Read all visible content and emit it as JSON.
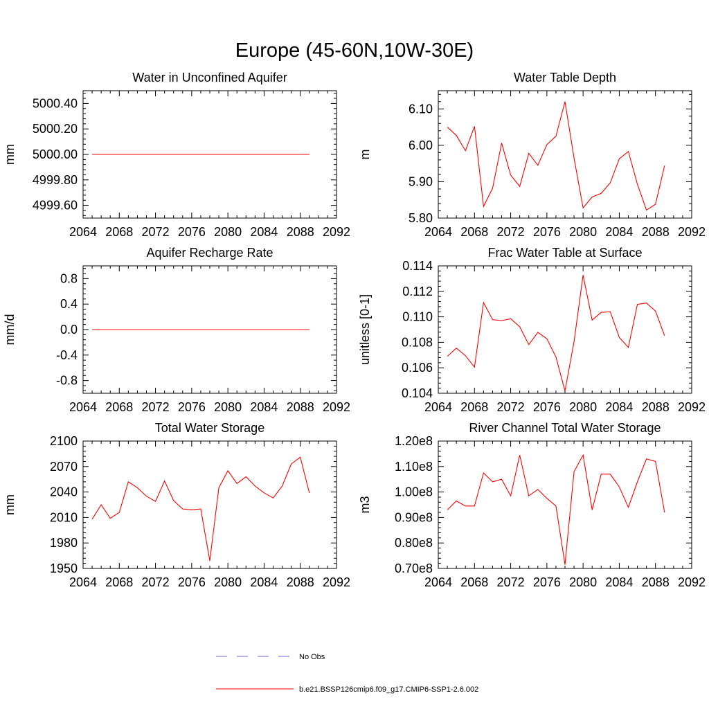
{
  "figure": {
    "title": "Europe (45-60N,10W-30E)",
    "legend": {
      "placement": "bottom-center",
      "entries": [
        {
          "label": "No Obs",
          "color": "#6b6bd6",
          "style": "dashed"
        },
        {
          "label": "b.e21.BSSP126cmip6.f09_g17.CMIP6-SSP1-2.6.002",
          "color": "#ff0000",
          "style": "solid"
        }
      ]
    }
  },
  "chart_data": [
    {
      "type": "line",
      "title": "Water in Unconfined Aquifer",
      "ylabel": "mm",
      "xlim": [
        2064,
        2092
      ],
      "ylim": [
        4999.5,
        5000.5
      ],
      "xticks": [
        2064,
        2068,
        2072,
        2076,
        2080,
        2084,
        2088,
        2092
      ],
      "yticks": [
        4999.6,
        4999.8,
        5000.0,
        5000.2,
        5000.4
      ],
      "ytick_labels": [
        "4999.60",
        "4999.80",
        "5000.00",
        "5000.20",
        "5000.40"
      ],
      "grid": false,
      "x": [
        2065,
        2066,
        2067,
        2068,
        2069,
        2070,
        2071,
        2072,
        2073,
        2074,
        2075,
        2076,
        2077,
        2078,
        2079,
        2080,
        2081,
        2082,
        2083,
        2084,
        2085,
        2086,
        2087,
        2088,
        2089
      ],
      "series": [
        {
          "color": "#ff0000",
          "values": [
            5000,
            5000,
            5000,
            5000,
            5000,
            5000,
            5000,
            5000,
            5000,
            5000,
            5000,
            5000,
            5000,
            5000,
            5000,
            5000,
            5000,
            5000,
            5000,
            5000,
            5000,
            5000,
            5000,
            5000,
            5000
          ]
        }
      ]
    },
    {
      "type": "line",
      "title": "Water Table Depth",
      "ylabel": "m",
      "xlim": [
        2064,
        2092
      ],
      "ylim": [
        5.8,
        6.15
      ],
      "xticks": [
        2064,
        2068,
        2072,
        2076,
        2080,
        2084,
        2088,
        2092
      ],
      "yticks": [
        5.8,
        5.9,
        6.0,
        6.1
      ],
      "ytick_labels": [
        "5.80",
        "5.90",
        "6.00",
        "6.10"
      ],
      "grid": false,
      "x": [
        2065,
        2066,
        2067,
        2068,
        2069,
        2070,
        2071,
        2072,
        2073,
        2074,
        2075,
        2076,
        2077,
        2078,
        2079,
        2080,
        2081,
        2082,
        2083,
        2084,
        2085,
        2086,
        2087,
        2088,
        2089
      ],
      "series": [
        {
          "color": "#ff0000",
          "values": [
            6.05,
            6.027,
            5.985,
            6.052,
            5.832,
            5.882,
            6.006,
            5.918,
            5.887,
            5.978,
            5.945,
            6.002,
            6.025,
            6.12,
            5.965,
            5.828,
            5.858,
            5.868,
            5.897,
            5.963,
            5.983,
            5.893,
            5.822,
            5.838,
            5.944
          ]
        }
      ]
    },
    {
      "type": "line",
      "title": "Aquifer Recharge Rate",
      "ylabel": "mm/d",
      "xlim": [
        2064,
        2092
      ],
      "ylim": [
        -1.0,
        1.0
      ],
      "xticks": [
        2064,
        2068,
        2072,
        2076,
        2080,
        2084,
        2088,
        2092
      ],
      "yticks": [
        -0.8,
        -0.4,
        0.0,
        0.4,
        0.8
      ],
      "ytick_labels": [
        "-0.8",
        "-0.4",
        "0.0",
        "0.4",
        "0.8"
      ],
      "grid": false,
      "x": [
        2065,
        2066,
        2067,
        2068,
        2069,
        2070,
        2071,
        2072,
        2073,
        2074,
        2075,
        2076,
        2077,
        2078,
        2079,
        2080,
        2081,
        2082,
        2083,
        2084,
        2085,
        2086,
        2087,
        2088,
        2089
      ],
      "series": [
        {
          "color": "#ff0000",
          "values": [
            0,
            0,
            0,
            0,
            0,
            0,
            0,
            0,
            0,
            0,
            0,
            0,
            0,
            0,
            0,
            0,
            0,
            0,
            0,
            0,
            0,
            0,
            0,
            0,
            0
          ]
        }
      ]
    },
    {
      "type": "line",
      "title": "Frac Water Table at Surface",
      "ylabel": "unitless [0-1]",
      "xlim": [
        2064,
        2092
      ],
      "ylim": [
        0.104,
        0.114
      ],
      "xticks": [
        2064,
        2068,
        2072,
        2076,
        2080,
        2084,
        2088,
        2092
      ],
      "yticks": [
        0.104,
        0.106,
        0.108,
        0.11,
        0.112,
        0.114
      ],
      "ytick_labels": [
        "0.104",
        "0.106",
        "0.108",
        "0.110",
        "0.112",
        "0.114"
      ],
      "grid": false,
      "x": [
        2065,
        2066,
        2067,
        2068,
        2069,
        2070,
        2071,
        2072,
        2073,
        2074,
        2075,
        2076,
        2077,
        2078,
        2079,
        2080,
        2081,
        2082,
        2083,
        2084,
        2085,
        2086,
        2087,
        2088,
        2089
      ],
      "series": [
        {
          "color": "#ff0000",
          "values": [
            0.1069,
            0.10755,
            0.10695,
            0.10605,
            0.11112,
            0.10978,
            0.1097,
            0.10985,
            0.10922,
            0.10782,
            0.10878,
            0.10828,
            0.10685,
            0.10418,
            0.10805,
            0.11328,
            0.10975,
            0.11035,
            0.1104,
            0.10838,
            0.1076,
            0.11098,
            0.11108,
            0.11045,
            0.10852
          ]
        }
      ]
    },
    {
      "type": "line",
      "title": "Total Water Storage",
      "ylabel": "mm",
      "xlim": [
        2064,
        2092
      ],
      "ylim": [
        1950,
        2100
      ],
      "xticks": [
        2064,
        2068,
        2072,
        2076,
        2080,
        2084,
        2088,
        2092
      ],
      "yticks": [
        1950,
        1980,
        2010,
        2040,
        2070,
        2100
      ],
      "ytick_labels": [
        "1950",
        "1980",
        "2010",
        "2040",
        "2070",
        "2100"
      ],
      "grid": false,
      "x": [
        2065,
        2066,
        2067,
        2068,
        2069,
        2070,
        2071,
        2072,
        2073,
        2074,
        2075,
        2076,
        2077,
        2078,
        2079,
        2080,
        2081,
        2082,
        2083,
        2084,
        2085,
        2086,
        2087,
        2088,
        2089
      ],
      "series": [
        {
          "color": "#ff0000",
          "values": [
            2008,
            2025,
            2009,
            2016,
            2052,
            2045,
            2035,
            2029,
            2053,
            2030,
            2020,
            2019,
            2020,
            1959,
            2045,
            2065,
            2050,
            2058,
            2047,
            2039,
            2033,
            2047,
            2073,
            2081,
            2039
          ]
        }
      ]
    },
    {
      "type": "line",
      "title": "River Channel Total Water Storage",
      "ylabel": "m3",
      "xlim": [
        2064,
        2092
      ],
      "ylim": [
        70000000.0,
        120000000.0
      ],
      "xticks": [
        2064,
        2068,
        2072,
        2076,
        2080,
        2084,
        2088,
        2092
      ],
      "yticks": [
        70000000.0,
        80000000.0,
        90000000.0,
        100000000.0,
        110000000.0,
        120000000.0
      ],
      "ytick_labels": [
        "0.70e8",
        "0.80e8",
        "0.90e8",
        "1.00e8",
        "1.10e8",
        "1.20e8"
      ],
      "grid": false,
      "x": [
        2065,
        2066,
        2067,
        2068,
        2069,
        2070,
        2071,
        2072,
        2073,
        2074,
        2075,
        2076,
        2077,
        2078,
        2079,
        2080,
        2081,
        2082,
        2083,
        2084,
        2085,
        2086,
        2087,
        2088,
        2089
      ],
      "series": [
        {
          "color": "#ff0000",
          "values": [
            93000000.0,
            96500000.0,
            94500000.0,
            94500000.0,
            107500000.0,
            104000000.0,
            105000000.0,
            98500000.0,
            114500000.0,
            98500000.0,
            101000000.0,
            97500000.0,
            94500000.0,
            71500000.0,
            108000000.0,
            114500000.0,
            93000000.0,
            107000000.0,
            107000000.0,
            102000000.0,
            94000000.0,
            104000000.0,
            113000000.0,
            112000000.0,
            92000000.0
          ]
        }
      ]
    }
  ]
}
